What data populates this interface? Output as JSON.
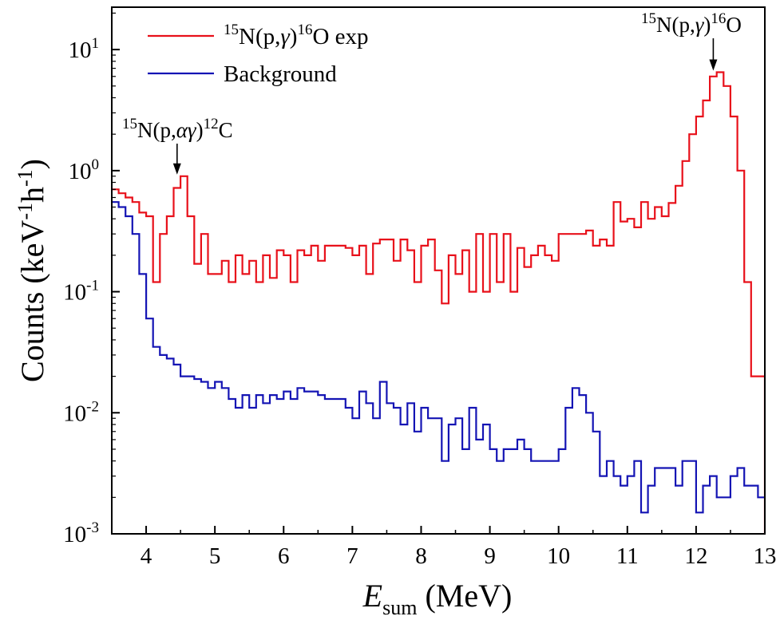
{
  "chart_data": {
    "type": "line",
    "step": true,
    "xlabel": {
      "main": "E",
      "sub": "sum",
      "unit": "(MeV)"
    },
    "ylabel": {
      "base": "Counts (keV",
      "exp1": "-1",
      "mid": "h",
      "exp2": "-1",
      "close": ")"
    },
    "xlim": [
      3.5,
      13.0
    ],
    "ylim_log10": [
      -3,
      1.35
    ],
    "yscale": "log",
    "x_ticks": [
      4,
      5,
      6,
      7,
      8,
      9,
      10,
      11,
      12,
      13
    ],
    "y_ticks": [
      {
        "value": 10,
        "base": "10",
        "exp": "1"
      },
      {
        "value": 1,
        "base": "10",
        "exp": "0"
      },
      {
        "value": 0.1,
        "base": "10",
        "exp": "-1"
      },
      {
        "value": 0.01,
        "base": "10",
        "exp": "-2"
      },
      {
        "value": 0.001,
        "base": "10",
        "exp": "-3"
      }
    ],
    "series": [
      {
        "name": "15N(p,γ)16O exp",
        "legend": {
          "sup1": "15",
          "t1": "N(p,",
          "greek": "γ",
          "t2": ")",
          "sup2": "16",
          "t3": "O exp"
        },
        "color": "#e8101a",
        "x": [
          3.5,
          3.6,
          3.7,
          3.8,
          3.9,
          4.0,
          4.1,
          4.2,
          4.3,
          4.4,
          4.5,
          4.6,
          4.7,
          4.8,
          4.9,
          5.0,
          5.1,
          5.2,
          5.3,
          5.4,
          5.5,
          5.6,
          5.7,
          5.8,
          5.9,
          6.0,
          6.1,
          6.2,
          6.3,
          6.4,
          6.5,
          6.6,
          6.7,
          6.8,
          6.9,
          7.0,
          7.1,
          7.2,
          7.3,
          7.4,
          7.5,
          7.6,
          7.7,
          7.8,
          7.9,
          8.0,
          8.1,
          8.2,
          8.3,
          8.4,
          8.5,
          8.6,
          8.7,
          8.8,
          8.9,
          9.0,
          9.1,
          9.2,
          9.3,
          9.4,
          9.5,
          9.6,
          9.7,
          9.8,
          9.9,
          10.0,
          10.1,
          10.2,
          10.3,
          10.4,
          10.5,
          10.6,
          10.7,
          10.8,
          10.9,
          11.0,
          11.1,
          11.2,
          11.3,
          11.4,
          11.5,
          11.6,
          11.7,
          11.8,
          11.9,
          12.0,
          12.1,
          12.2,
          12.3,
          12.4,
          12.5,
          12.6,
          12.7,
          12.8,
          12.9
        ],
        "values": [
          0.7,
          0.65,
          0.6,
          0.55,
          0.45,
          0.42,
          0.12,
          0.3,
          0.42,
          0.72,
          0.9,
          0.42,
          0.17,
          0.3,
          0.14,
          0.14,
          0.18,
          0.12,
          0.2,
          0.14,
          0.18,
          0.12,
          0.2,
          0.13,
          0.22,
          0.2,
          0.12,
          0.22,
          0.2,
          0.24,
          0.18,
          0.24,
          0.24,
          0.24,
          0.23,
          0.2,
          0.24,
          0.14,
          0.25,
          0.27,
          0.27,
          0.18,
          0.27,
          0.22,
          0.12,
          0.24,
          0.27,
          0.15,
          0.08,
          0.2,
          0.14,
          0.22,
          0.1,
          0.3,
          0.1,
          0.3,
          0.12,
          0.3,
          0.1,
          0.23,
          0.16,
          0.2,
          0.24,
          0.2,
          0.18,
          0.3,
          0.3,
          0.3,
          0.3,
          0.32,
          0.24,
          0.27,
          0.24,
          0.55,
          0.38,
          0.4,
          0.34,
          0.55,
          0.4,
          0.5,
          0.42,
          0.54,
          0.75,
          1.2,
          2.0,
          2.8,
          3.8,
          6.0,
          6.5,
          5.0,
          2.8,
          1.0,
          0.12,
          0.02,
          0.02
        ]
      },
      {
        "name": "Background",
        "legend": {
          "text": "Background"
        },
        "color": "#1414b4",
        "x": [
          3.5,
          3.6,
          3.7,
          3.8,
          3.9,
          4.0,
          4.1,
          4.2,
          4.3,
          4.4,
          4.5,
          4.6,
          4.7,
          4.8,
          4.9,
          5.0,
          5.1,
          5.2,
          5.3,
          5.4,
          5.5,
          5.6,
          5.7,
          5.8,
          5.9,
          6.0,
          6.1,
          6.2,
          6.3,
          6.4,
          6.5,
          6.6,
          6.7,
          6.8,
          6.9,
          7.0,
          7.1,
          7.2,
          7.3,
          7.4,
          7.5,
          7.6,
          7.7,
          7.8,
          7.9,
          8.0,
          8.1,
          8.2,
          8.3,
          8.4,
          8.5,
          8.6,
          8.7,
          8.8,
          8.9,
          9.0,
          9.1,
          9.2,
          9.3,
          9.4,
          9.5,
          9.6,
          9.7,
          9.8,
          9.9,
          10.0,
          10.1,
          10.2,
          10.3,
          10.4,
          10.5,
          10.6,
          10.7,
          10.8,
          10.9,
          11.0,
          11.1,
          11.2,
          11.3,
          11.4,
          11.5,
          11.6,
          11.7,
          11.8,
          11.9,
          12.0,
          12.1,
          12.2,
          12.3,
          12.4,
          12.5,
          12.6,
          12.7,
          12.8,
          12.9
        ],
        "values": [
          0.55,
          0.5,
          0.42,
          0.3,
          0.14,
          0.06,
          0.035,
          0.03,
          0.028,
          0.025,
          0.02,
          0.02,
          0.019,
          0.018,
          0.016,
          0.018,
          0.016,
          0.013,
          0.011,
          0.014,
          0.011,
          0.014,
          0.012,
          0.014,
          0.013,
          0.015,
          0.013,
          0.016,
          0.015,
          0.015,
          0.014,
          0.013,
          0.013,
          0.013,
          0.011,
          0.009,
          0.015,
          0.012,
          0.009,
          0.018,
          0.012,
          0.011,
          0.008,
          0.012,
          0.007,
          0.011,
          0.009,
          0.009,
          0.004,
          0.008,
          0.009,
          0.005,
          0.011,
          0.006,
          0.008,
          0.005,
          0.004,
          0.005,
          0.005,
          0.006,
          0.005,
          0.004,
          0.004,
          0.004,
          0.004,
          0.005,
          0.011,
          0.016,
          0.014,
          0.01,
          0.007,
          0.003,
          0.004,
          0.003,
          0.0025,
          0.003,
          0.004,
          0.0015,
          0.0025,
          0.0035,
          0.0035,
          0.0035,
          0.0025,
          0.004,
          0.004,
          0.0015,
          0.0025,
          0.003,
          0.002,
          0.002,
          0.003,
          0.0035,
          0.0025,
          0.0025,
          0.002
        ]
      }
    ],
    "annotations": [
      {
        "id": "peak-4-4",
        "x": 4.45,
        "y": 0.9,
        "sup1": "15",
        "t1": "N(p,",
        "greek": "αγ",
        "t2": ")",
        "sup2": "12",
        "t3": "C"
      },
      {
        "id": "peak-12-3",
        "x": 12.25,
        "y": 6.5,
        "sup1": "15",
        "t1": "N(p,",
        "greek": "γ",
        "t2": ")",
        "sup2": "16",
        "t3": "O"
      }
    ]
  }
}
